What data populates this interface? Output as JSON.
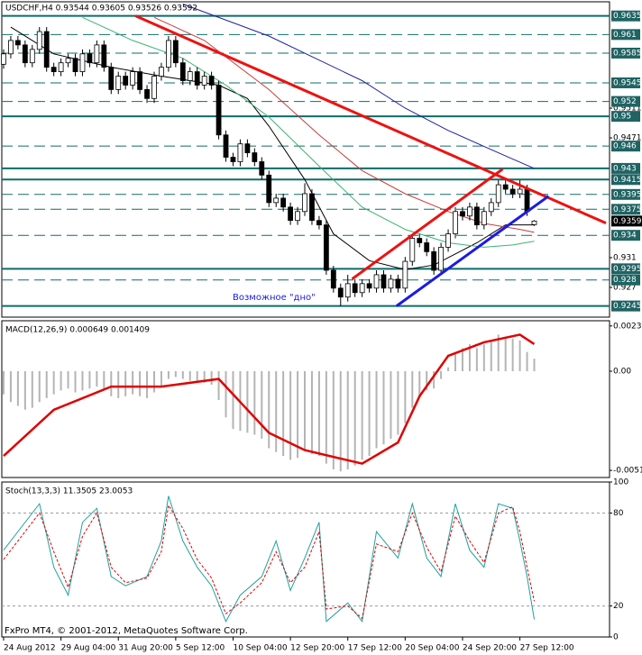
{
  "chart_data": [
    {
      "type": "candlestick",
      "title": "USDCHF,H4  0.93544 0.93605 0.93526 0.93592",
      "open": [
        0.957,
        0.9584,
        0.9602,
        0.9596,
        0.9572,
        0.959,
        0.9614,
        0.9566,
        0.956,
        0.9572,
        0.9578,
        0.956,
        0.9584,
        0.9572,
        0.9596,
        0.9566,
        0.9536,
        0.9554,
        0.9542,
        0.956,
        0.9536,
        0.9524,
        0.9554,
        0.9566,
        0.9602,
        0.9572,
        0.9548,
        0.956,
        0.9542,
        0.9554,
        0.9542,
        0.9475,
        0.9445,
        0.9439,
        0.9463,
        0.9451,
        0.9439,
        0.9421,
        0.9384,
        0.939,
        0.9378,
        0.936,
        0.9372,
        0.9396,
        0.936,
        0.9354,
        0.9293,
        0.9269,
        0.9257,
        0.9275,
        0.9263,
        0.9275,
        0.9269,
        0.9287,
        0.9269,
        0.9281,
        0.9269,
        0.9305,
        0.9336,
        0.933,
        0.9318,
        0.9293,
        0.9324,
        0.9342,
        0.9372,
        0.9366,
        0.9378,
        0.9354,
        0.9372,
        0.9384,
        0.9408,
        0.9402,
        0.9396,
        0.9402,
        0.93544
      ],
      "high": [
        0.959,
        0.9608,
        0.9608,
        0.9602,
        0.9596,
        0.962,
        0.962,
        0.9572,
        0.9578,
        0.9584,
        0.9584,
        0.959,
        0.959,
        0.9602,
        0.9602,
        0.9572,
        0.956,
        0.956,
        0.9566,
        0.9566,
        0.9542,
        0.956,
        0.9572,
        0.9608,
        0.9608,
        0.9578,
        0.9566,
        0.9566,
        0.956,
        0.956,
        0.9548,
        0.9481,
        0.9451,
        0.9469,
        0.9469,
        0.9457,
        0.9445,
        0.9427,
        0.9396,
        0.9396,
        0.9384,
        0.9378,
        0.941,
        0.9402,
        0.9366,
        0.936,
        0.9299,
        0.9275,
        0.9287,
        0.9281,
        0.9281,
        0.9281,
        0.9293,
        0.9293,
        0.9287,
        0.9287,
        0.9311,
        0.9342,
        0.9342,
        0.9336,
        0.9324,
        0.933,
        0.9348,
        0.9378,
        0.9378,
        0.9384,
        0.9384,
        0.9378,
        0.939,
        0.9414,
        0.9414,
        0.9408,
        0.9414,
        0.9408,
        0.93605
      ],
      "low": [
        0.9564,
        0.9578,
        0.959,
        0.9566,
        0.9566,
        0.9584,
        0.956,
        0.9554,
        0.9554,
        0.9566,
        0.9554,
        0.9554,
        0.9566,
        0.9566,
        0.956,
        0.953,
        0.953,
        0.9536,
        0.9536,
        0.953,
        0.9518,
        0.9518,
        0.9548,
        0.956,
        0.9566,
        0.9542,
        0.9542,
        0.9536,
        0.9536,
        0.9536,
        0.9469,
        0.9439,
        0.9433,
        0.9433,
        0.9445,
        0.9433,
        0.9415,
        0.9378,
        0.9378,
        0.9372,
        0.9354,
        0.9354,
        0.9366,
        0.9354,
        0.9348,
        0.9287,
        0.9263,
        0.9245,
        0.9251,
        0.9257,
        0.9257,
        0.9263,
        0.9263,
        0.9263,
        0.9263,
        0.9263,
        0.9263,
        0.9299,
        0.9324,
        0.9312,
        0.9287,
        0.9287,
        0.9318,
        0.9336,
        0.936,
        0.936,
        0.9348,
        0.9348,
        0.9366,
        0.9378,
        0.9396,
        0.939,
        0.939,
        0.9366,
        0.93526
      ],
      "close": [
        0.9584,
        0.9602,
        0.9596,
        0.9572,
        0.959,
        0.9614,
        0.9566,
        0.956,
        0.9572,
        0.9578,
        0.956,
        0.9584,
        0.9572,
        0.9596,
        0.9566,
        0.9536,
        0.9554,
        0.9542,
        0.956,
        0.9536,
        0.9524,
        0.9554,
        0.9566,
        0.9602,
        0.9572,
        0.9548,
        0.956,
        0.9542,
        0.9554,
        0.9542,
        0.9475,
        0.9445,
        0.9439,
        0.9463,
        0.9451,
        0.9439,
        0.9421,
        0.9384,
        0.939,
        0.9378,
        0.936,
        0.9372,
        0.9396,
        0.936,
        0.9354,
        0.9293,
        0.9269,
        0.9257,
        0.9275,
        0.9263,
        0.9275,
        0.9269,
        0.9287,
        0.9269,
        0.9281,
        0.9269,
        0.9305,
        0.9336,
        0.933,
        0.9318,
        0.9293,
        0.9324,
        0.9342,
        0.9372,
        0.9366,
        0.9378,
        0.9354,
        0.9372,
        0.9384,
        0.9408,
        0.9402,
        0.9396,
        0.9402,
        0.9372,
        0.93592
      ],
      "series": [
        {
          "color": "#000000",
          "x": [
            1,
            7,
            15,
            22,
            30,
            34,
            37,
            42,
            46,
            51,
            56,
            60,
            66,
            70,
            74
          ],
          "values": [
            0.962,
            0.9584,
            0.9566,
            0.9554,
            0.9542,
            0.9524,
            0.9487,
            0.9415,
            0.9342,
            0.9306,
            0.9294,
            0.93,
            0.933,
            0.9354,
            0.9354
          ]
        },
        {
          "color": "#3cb371",
          "x": [
            11,
            18,
            25,
            31,
            37,
            44,
            50,
            56,
            62,
            67,
            71,
            74
          ],
          "values": [
            0.9633,
            0.9602,
            0.9578,
            0.9542,
            0.9499,
            0.9433,
            0.9378,
            0.9348,
            0.933,
            0.9324,
            0.9327,
            0.9332
          ]
        },
        {
          "color": "#c83c3c",
          "x": [
            21,
            28,
            37,
            44,
            50,
            56,
            62,
            67,
            72,
            74
          ],
          "values": [
            0.9633,
            0.9602,
            0.9536,
            0.9475,
            0.9427,
            0.9396,
            0.9372,
            0.9356,
            0.9348,
            0.9344
          ]
        },
        {
          "color": "#2020a0",
          "x": [
            25,
            37,
            50,
            56,
            62,
            69,
            74
          ],
          "values": [
            0.9651,
            0.9608,
            0.9548,
            0.9511,
            0.9481,
            0.9451,
            0.943
          ]
        }
      ],
      "trendlines": [
        {
          "color": "#ee1111",
          "x": [
            18.4,
            84
          ],
          "values": [
            0.9635,
            0.93564
          ]
        },
        {
          "color": "#ee1111",
          "x": [
            48.6,
            69.6
          ],
          "values": [
            0.92813,
            0.94291
          ]
        },
        {
          "color": "#1a1ae6",
          "x": [
            54.8,
            76
          ],
          "values": [
            0.9245,
            0.93927
          ]
        }
      ],
      "levels": [
        {
          "value": 0.9635,
          "style": "solid"
        },
        {
          "value": 0.961,
          "style": "dashed"
        },
        {
          "value": 0.9585,
          "style": "dashed"
        },
        {
          "value": 0.9545,
          "style": "dashed"
        },
        {
          "value": 0.952,
          "style": "dashed"
        },
        {
          "value": 0.95,
          "style": "solid"
        },
        {
          "value": 0.946,
          "style": "dashed"
        },
        {
          "value": 0.943,
          "style": "solid"
        },
        {
          "value": 0.9415,
          "style": "solid"
        },
        {
          "value": 0.9395,
          "style": "dashed"
        },
        {
          "value": 0.9375,
          "style": "dashed"
        },
        {
          "value": 0.934,
          "style": "dashed"
        },
        {
          "value": 0.9295,
          "style": "solid"
        },
        {
          "value": 0.928,
          "style": "dashed"
        },
        {
          "value": 0.9245,
          "style": "solid"
        }
      ],
      "last_price": 0.93592,
      "annotations": [
        "Возможное \"дно\""
      ],
      "xlim": [
        -0.25,
        84.5
      ],
      "ylim": [
        0.923,
        0.9654
      ],
      "yticks": [
        0.9511,
        0.9471,
        0.931,
        0.927
      ]
    },
    {
      "type": "macd",
      "title": "MACD(12,26,9) 0.000649 0.001409",
      "histogram": {
        "color": "#b4b4b4",
        "values": [
          -0.0012,
          -0.0016,
          -0.0018,
          -0.002,
          -0.0019,
          -0.0016,
          -0.0014,
          -0.0012,
          -0.001,
          -0.0009,
          -0.0011,
          -0.001,
          -0.0009,
          -0.0008,
          -0.001,
          -0.0013,
          -0.0014,
          -0.0013,
          -0.0012,
          -0.0013,
          -0.0014,
          -0.0011,
          -0.0008,
          -0.0004,
          -0.0003,
          -0.0004,
          -0.0005,
          -0.0006,
          -0.0006,
          -0.0007,
          -0.0015,
          -0.0024,
          -0.003,
          -0.0031,
          -0.0032,
          -0.0033,
          -0.0035,
          -0.004,
          -0.0042,
          -0.0044,
          -0.0046,
          -0.0045,
          -0.0041,
          -0.0043,
          -0.0044,
          -0.0048,
          -0.0051,
          -0.0052,
          -0.0051,
          -0.0049,
          -0.0046,
          -0.0044,
          -0.004,
          -0.0038,
          -0.0035,
          -0.0033,
          -0.0027,
          -0.0019,
          -0.0013,
          -0.001,
          -0.0009,
          -0.0004,
          0.0002,
          0.0009,
          0.0012,
          0.0014,
          0.0012,
          0.0014,
          0.0016,
          0.0019,
          0.0018,
          0.0017,
          0.0016,
          0.001,
          0.000649
        ]
      },
      "signal": {
        "color": "#e00000",
        "x": [
          0,
          7,
          15,
          22,
          30,
          33,
          37,
          42,
          50,
          55,
          58,
          62,
          67,
          72,
          74
        ],
        "values": [
          -0.0044,
          -0.002,
          -0.0008,
          -0.0008,
          -0.0004,
          -0.0016,
          -0.0032,
          -0.0041,
          -0.0048,
          -0.0037,
          -0.0013,
          0.0008,
          0.0015,
          0.0019,
          0.001409
        ]
      },
      "xlim": [
        -0.25,
        84.5
      ],
      "ylim": [
        -0.00552,
        0.00262
      ],
      "yticks": [
        0.00235,
        {
          "value": 0,
          "label": "0.00"
        },
        -0.00515
      ]
    },
    {
      "type": "stochastic",
      "title": "Stoch(13,3,3) 11.3505 23.0053",
      "series": [
        {
          "color": "#20a0a0",
          "dashed": false,
          "x": [
            0,
            2,
            5,
            7,
            9,
            11,
            13,
            15,
            17,
            20,
            22,
            23,
            25,
            27,
            29,
            31,
            33,
            36,
            38,
            40,
            42,
            44,
            45,
            48,
            50,
            52,
            55,
            57,
            59,
            61,
            63,
            65,
            67,
            69,
            71,
            72,
            73,
            74
          ],
          "values": [
            56,
            68,
            86,
            45,
            27,
            74,
            83,
            39,
            33,
            39,
            62,
            91,
            62,
            45,
            33,
            10,
            27,
            39,
            62,
            30,
            51,
            74,
            10,
            22,
            10,
            68,
            51,
            86,
            51,
            39,
            86,
            56,
            45,
            86,
            83,
            62,
            39,
            11.3505
          ]
        },
        {
          "color": "#e00000",
          "dashed": true,
          "x": [
            0,
            2,
            5,
            7,
            9,
            11,
            13,
            15,
            17,
            20,
            22,
            23,
            25,
            27,
            29,
            31,
            33,
            36,
            38,
            40,
            42,
            44,
            45,
            48,
            50,
            52,
            55,
            57,
            59,
            61,
            63,
            65,
            67,
            69,
            71,
            72,
            73,
            74
          ],
          "values": [
            50,
            62,
            80,
            55,
            32,
            65,
            80,
            45,
            35,
            38,
            55,
            85,
            70,
            50,
            38,
            15,
            22,
            35,
            55,
            35,
            45,
            68,
            18,
            20,
            12,
            60,
            55,
            80,
            58,
            42,
            78,
            62,
            48,
            80,
            84,
            68,
            45,
            23.0053
          ]
        }
      ],
      "levels": [
        20,
        80
      ],
      "xlim": [
        -0.25,
        84.5
      ],
      "ylim": [
        0,
        100
      ],
      "yticks": [
        0,
        20,
        80,
        100
      ],
      "xticks": [
        {
          "value": 0,
          "label": "24 Aug 2012"
        },
        {
          "value": 8,
          "label": "29 Aug 04:00"
        },
        {
          "value": 16,
          "label": "31 Aug 20:00"
        },
        {
          "value": 24,
          "label": "5 Sep 12:00"
        },
        {
          "value": 32,
          "label": "10 Sep 04:00"
        },
        {
          "value": 40,
          "label": "12 Sep 20:00"
        },
        {
          "value": 48,
          "label": "17 Sep 12:00"
        },
        {
          "value": 56,
          "label": "20 Sep 04:00"
        },
        {
          "value": 64,
          "label": "24 Sep 20:00"
        },
        {
          "value": 72,
          "label": "27 Sep 12:00"
        }
      ]
    }
  ],
  "footer": "FxPro MT4, © 2001-2012, MetaQuotes Software Corp."
}
